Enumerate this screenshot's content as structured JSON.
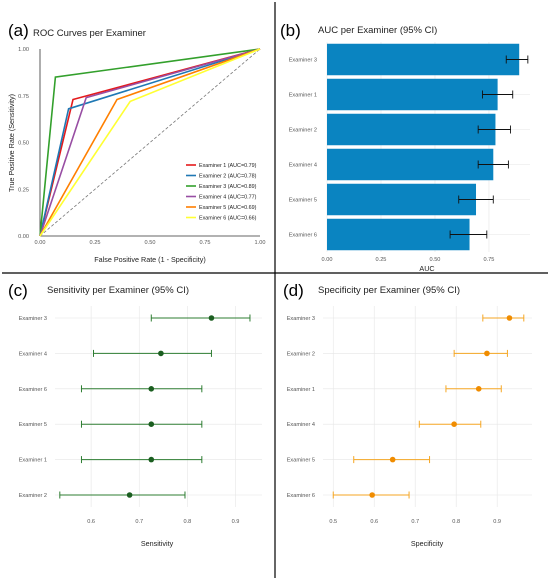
{
  "chart_data": [
    {
      "type": "line",
      "panel_label": "(a)",
      "title": "ROC Curves per Examiner",
      "xlabel": "False Positive Rate (1 - Specificity)",
      "ylabel": "True Positive Rate (Sensitivity)",
      "xlim": [
        0,
        1
      ],
      "ylim": [
        0,
        1
      ],
      "x_ticks": [
        "0.00",
        "0.25",
        "0.50",
        "0.75",
        "1.00"
      ],
      "y_ticks": [
        "0.00",
        "0.25",
        "0.50",
        "0.75",
        "1.00"
      ],
      "grid": false,
      "legend_position": "bottom-right",
      "reference_line": "diagonal-dashed",
      "series": [
        {
          "name": "Examiner 1 (AUC=0.79)",
          "color": "#e41a1c",
          "x": [
            0,
            0.15,
            1
          ],
          "y": [
            0,
            0.73,
            1
          ]
        },
        {
          "name": "Examiner 2 (AUC=0.78)",
          "color": "#1f78b4",
          "x": [
            0,
            0.13,
            1
          ],
          "y": [
            0,
            0.68,
            1
          ]
        },
        {
          "name": "Examiner 3 (AUC=0.89)",
          "color": "#33a02c",
          "x": [
            0,
            0.07,
            1
          ],
          "y": [
            0,
            0.85,
            1
          ]
        },
        {
          "name": "Examiner 4 (AUC=0.77)",
          "color": "#984ea3",
          "x": [
            0,
            0.21,
            1
          ],
          "y": [
            0,
            0.74,
            1
          ]
        },
        {
          "name": "Examiner 5 (AUC=0.69)",
          "color": "#ff7f00",
          "x": [
            0,
            0.35,
            1
          ],
          "y": [
            0,
            0.73,
            1
          ]
        },
        {
          "name": "Examiner 6 (AUC=0.66)",
          "color": "#ffff33",
          "x": [
            0,
            0.41,
            1
          ],
          "y": [
            0,
            0.72,
            1
          ]
        }
      ]
    },
    {
      "type": "bar",
      "orientation": "horizontal",
      "panel_label": "(b)",
      "title": "AUC per Examiner (95% CI)",
      "xlabel": "AUC",
      "xlim": [
        0,
        0.94
      ],
      "x_ticks": [
        0,
        0.25,
        0.5,
        0.75
      ],
      "x_tick_labels": [
        "0.00",
        "0.25",
        "0.50",
        "0.75"
      ],
      "bar_color": "#0a84c1",
      "categories": [
        "Examiner 3",
        "Examiner 1",
        "Examiner 2",
        "Examiner 4",
        "Examiner 5",
        "Examiner 6"
      ],
      "values": [
        0.89,
        0.79,
        0.78,
        0.77,
        0.69,
        0.66
      ],
      "ci_low": [
        0.83,
        0.72,
        0.7,
        0.7,
        0.61,
        0.57
      ],
      "ci_high": [
        0.93,
        0.86,
        0.85,
        0.84,
        0.77,
        0.74
      ]
    },
    {
      "type": "scatter",
      "style": "forest",
      "panel_label": "(c)",
      "title": "Sensitivity per Examiner (95% CI)",
      "xlabel": "Sensitivity",
      "xlim": [
        0.525,
        0.955
      ],
      "x_ticks": [
        0.6,
        0.7,
        0.8,
        0.9
      ],
      "x_tick_labels": [
        "0.6",
        "0.7",
        "0.8",
        "0.9"
      ],
      "color": "#2e7d32",
      "point_color": "#1b5e20",
      "categories": [
        "Examiner 3",
        "Examiner 4",
        "Examiner 6",
        "Examiner 5",
        "Examiner 1",
        "Examiner 2"
      ],
      "values": [
        0.85,
        0.745,
        0.725,
        0.725,
        0.725,
        0.68
      ],
      "ci_low": [
        0.725,
        0.605,
        0.58,
        0.58,
        0.58,
        0.535
      ],
      "ci_high": [
        0.93,
        0.85,
        0.83,
        0.83,
        0.83,
        0.795
      ]
    },
    {
      "type": "scatter",
      "style": "forest",
      "panel_label": "(d)",
      "title": "Specificity per Examiner (95% CI)",
      "xlabel": "Specificity",
      "xlim": [
        0.475,
        0.985
      ],
      "x_ticks": [
        0.5,
        0.6,
        0.7,
        0.8,
        0.9
      ],
      "x_tick_labels": [
        "0.5",
        "0.6",
        "0.7",
        "0.8",
        "0.9"
      ],
      "color": "#f5a623",
      "point_color": "#f08c00",
      "categories": [
        "Examiner 3",
        "Examiner 2",
        "Examiner 1",
        "Examiner 4",
        "Examiner 5",
        "Examiner 6"
      ],
      "values": [
        0.93,
        0.875,
        0.855,
        0.795,
        0.645,
        0.595
      ],
      "ci_low": [
        0.865,
        0.795,
        0.775,
        0.71,
        0.55,
        0.5
      ],
      "ci_high": [
        0.965,
        0.925,
        0.91,
        0.86,
        0.735,
        0.685
      ]
    }
  ]
}
